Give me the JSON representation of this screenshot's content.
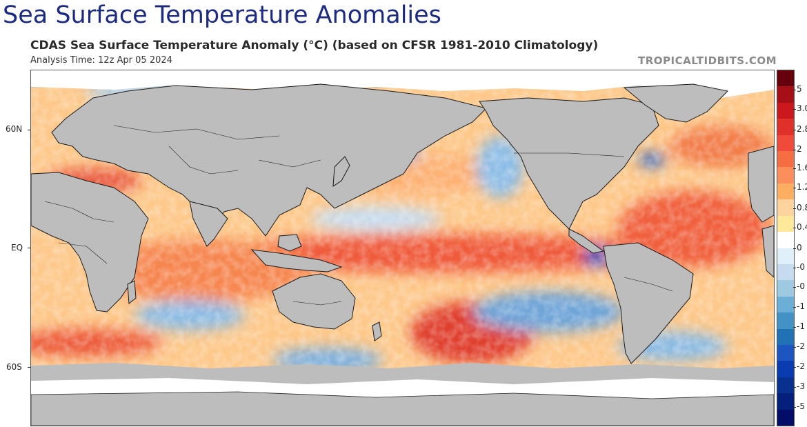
{
  "header": {
    "title": "Sea Surface Temperature Anomalies",
    "subtitle": "CDAS Sea Surface Temperature Anomaly (°C) (based on CFSR 1981-2010 Climatology)",
    "analysis_time": "Analysis Time: 12z Apr 05 2024",
    "credit": "TROPICALTIDBITS.COM"
  },
  "map": {
    "lat_labels": [
      "60N",
      "EQ",
      "60S"
    ],
    "colors": {
      "land": "#bdbdbd",
      "ice": "#ffffff",
      "border": "#1a1a1a",
      "warm_strong": "#d73027",
      "warm": "#fc8d59",
      "warm_light": "#fee090",
      "neutral": "#ffffff",
      "cool_light": "#c6dbef",
      "cool": "#6baed6",
      "cool_strong": "#2166ac"
    }
  },
  "colorbar": {
    "labels": [
      "5",
      "3.0",
      "2.8",
      "2",
      "1.6",
      "1.2",
      "0.8",
      "0.4",
      "0",
      "-0",
      "-0",
      "-1",
      "-1",
      "-2",
      "-2",
      "-3",
      "-5"
    ],
    "colors": [
      "#67000d",
      "#a50f15",
      "#cb181d",
      "#e0302a",
      "#ef4a3a",
      "#f46d43",
      "#fb8e5a",
      "#fdae61",
      "#fdd49e",
      "#fee99a",
      "#ffffff",
      "#e0f0fb",
      "#c6dbef",
      "#9ecae1",
      "#6baed6",
      "#4292c6",
      "#2171b5",
      "#1c55c0",
      "#0a3bb0",
      "#08308e",
      "#05207a",
      "#030c66"
    ]
  }
}
